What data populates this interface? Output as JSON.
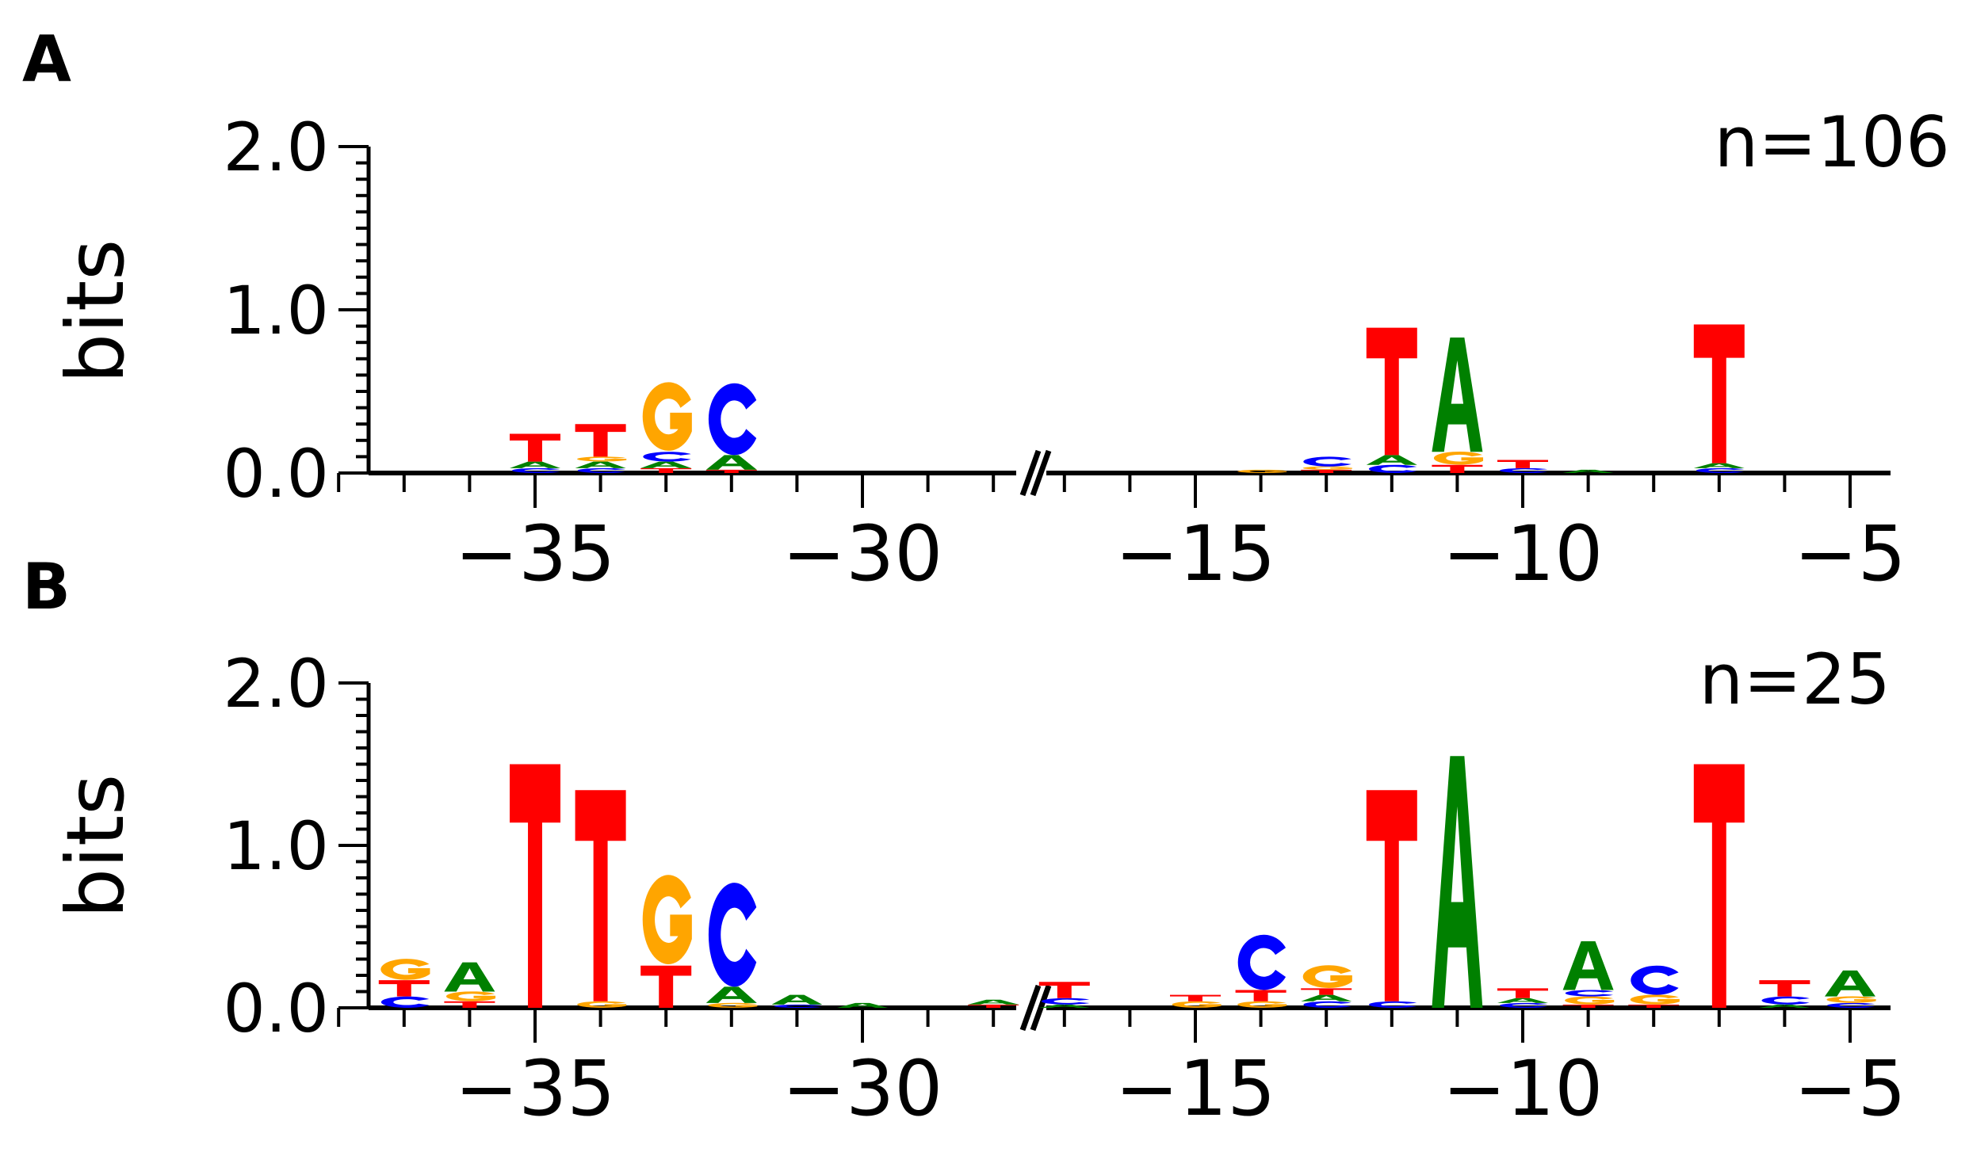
{
  "chart_data": [
    {
      "type": "sequence-logo",
      "panel_label": "A",
      "annotation": "n=106",
      "ylabel": "bits",
      "ylim": [
        0,
        2
      ],
      "yticks": [
        "0.0",
        "1.0",
        "2.0"
      ],
      "xticks": [
        "−35",
        "−30",
        "−15",
        "−10",
        "−5"
      ],
      "axis_break": true,
      "colors": {
        "A": "#008000",
        "C": "#0000ff",
        "G": "#ffa500",
        "T": "#ff0000"
      },
      "positions": [
        {
          "pos": -35,
          "letters": [
            {
              "base": "C",
              "bits": 0.03
            },
            {
              "base": "A",
              "bits": 0.04
            },
            {
              "base": "T",
              "bits": 0.17
            }
          ]
        },
        {
          "pos": -34,
          "letters": [
            {
              "base": "C",
              "bits": 0.03
            },
            {
              "base": "A",
              "bits": 0.04
            },
            {
              "base": "G",
              "bits": 0.03
            },
            {
              "base": "T",
              "bits": 0.2
            }
          ]
        },
        {
          "pos": -33,
          "letters": [
            {
              "base": "T",
              "bits": 0.03
            },
            {
              "base": "A",
              "bits": 0.04
            },
            {
              "base": "C",
              "bits": 0.06
            },
            {
              "base": "G",
              "bits": 0.42
            }
          ]
        },
        {
          "pos": -32,
          "letters": [
            {
              "base": "T",
              "bits": 0.02
            },
            {
              "base": "A",
              "bits": 0.09
            },
            {
              "base": "C",
              "bits": 0.44
            }
          ]
        },
        {
          "pos": -14,
          "letters": [
            {
              "base": "G",
              "bits": 0.02
            }
          ]
        },
        {
          "pos": -13,
          "letters": [
            {
              "base": "T",
              "bits": 0.02
            },
            {
              "base": "G",
              "bits": 0.02
            },
            {
              "base": "C",
              "bits": 0.06
            }
          ]
        },
        {
          "pos": -12,
          "letters": [
            {
              "base": "C",
              "bits": 0.05
            },
            {
              "base": "A",
              "bits": 0.06
            },
            {
              "base": "T",
              "bits": 0.78
            }
          ]
        },
        {
          "pos": -11,
          "letters": [
            {
              "base": "T",
              "bits": 0.05
            },
            {
              "base": "G",
              "bits": 0.08
            },
            {
              "base": "A",
              "bits": 0.7
            }
          ]
        },
        {
          "pos": -10,
          "letters": [
            {
              "base": "C",
              "bits": 0.03
            },
            {
              "base": "T",
              "bits": 0.05
            }
          ]
        },
        {
          "pos": -9,
          "letters": [
            {
              "base": "A",
              "bits": 0.02
            }
          ]
        },
        {
          "pos": -7,
          "letters": [
            {
              "base": "C",
              "bits": 0.03
            },
            {
              "base": "A",
              "bits": 0.03
            },
            {
              "base": "T",
              "bits": 0.85
            }
          ]
        }
      ]
    },
    {
      "type": "sequence-logo",
      "panel_label": "B",
      "annotation": "n=25",
      "ylabel": "bits",
      "ylim": [
        0,
        2
      ],
      "yticks": [
        "0.0",
        "1.0",
        "2.0"
      ],
      "xticks": [
        "−35",
        "−30",
        "−15",
        "−10",
        "−5"
      ],
      "axis_break": true,
      "colors": {
        "A": "#008000",
        "C": "#0000ff",
        "G": "#ffa500",
        "T": "#ff0000"
      },
      "positions": [
        {
          "pos": -37,
          "letters": [
            {
              "base": "C",
              "bits": 0.07
            },
            {
              "base": "T",
              "bits": 0.1
            },
            {
              "base": "G",
              "bits": 0.13
            }
          ]
        },
        {
          "pos": -36,
          "letters": [
            {
              "base": "T",
              "bits": 0.04
            },
            {
              "base": "G",
              "bits": 0.06
            },
            {
              "base": "A",
              "bits": 0.18
            }
          ]
        },
        {
          "pos": -35,
          "letters": [
            {
              "base": "T",
              "bits": 1.5
            }
          ]
        },
        {
          "pos": -34,
          "letters": [
            {
              "base": "G",
              "bits": 0.04
            },
            {
              "base": "T",
              "bits": 1.3
            }
          ]
        },
        {
          "pos": -33,
          "letters": [
            {
              "base": "T",
              "bits": 0.26
            },
            {
              "base": "G",
              "bits": 0.55
            }
          ]
        },
        {
          "pos": -32,
          "letters": [
            {
              "base": "G",
              "bits": 0.03
            },
            {
              "base": "A",
              "bits": 0.1
            },
            {
              "base": "C",
              "bits": 0.64
            }
          ]
        },
        {
          "pos": -31,
          "letters": [
            {
              "base": "C",
              "bits": 0.02
            },
            {
              "base": "A",
              "bits": 0.06
            }
          ]
        },
        {
          "pos": -30,
          "letters": [
            {
              "base": "A",
              "bits": 0.03
            }
          ]
        },
        {
          "pos": -28,
          "letters": [
            {
              "base": "T",
              "bits": 0.02
            },
            {
              "base": "A",
              "bits": 0.03
            }
          ]
        },
        {
          "pos": -17,
          "letters": [
            {
              "base": "A",
              "bits": 0.02
            },
            {
              "base": "C",
              "bits": 0.04
            },
            {
              "base": "T",
              "bits": 0.1
            }
          ]
        },
        {
          "pos": -15,
          "letters": [
            {
              "base": "G",
              "bits": 0.04
            },
            {
              "base": "T",
              "bits": 0.04
            }
          ]
        },
        {
          "pos": -14,
          "letters": [
            {
              "base": "G",
              "bits": 0.04
            },
            {
              "base": "T",
              "bits": 0.07
            },
            {
              "base": "C",
              "bits": 0.34
            }
          ]
        },
        {
          "pos": -13,
          "letters": [
            {
              "base": "C",
              "bits": 0.04
            },
            {
              "base": "A",
              "bits": 0.04
            },
            {
              "base": "T",
              "bits": 0.04
            },
            {
              "base": "G",
              "bits": 0.14
            }
          ]
        },
        {
          "pos": -12,
          "letters": [
            {
              "base": "C",
              "bits": 0.04
            },
            {
              "base": "T",
              "bits": 1.3
            }
          ]
        },
        {
          "pos": -11,
          "letters": [
            {
              "base": "A",
              "bits": 1.55
            }
          ]
        },
        {
          "pos": -10,
          "letters": [
            {
              "base": "C",
              "bits": 0.03
            },
            {
              "base": "A",
              "bits": 0.03
            },
            {
              "base": "T",
              "bits": 0.06
            }
          ]
        },
        {
          "pos": -9,
          "letters": [
            {
              "base": "T",
              "bits": 0.02
            },
            {
              "base": "G",
              "bits": 0.05
            },
            {
              "base": "C",
              "bits": 0.04
            },
            {
              "base": "A",
              "bits": 0.3
            }
          ]
        },
        {
          "pos": -8,
          "letters": [
            {
              "base": "T",
              "bits": 0.02
            },
            {
              "base": "G",
              "bits": 0.06
            },
            {
              "base": "C",
              "bits": 0.18
            }
          ]
        },
        {
          "pos": -7,
          "letters": [
            {
              "base": "T",
              "bits": 1.5
            }
          ]
        },
        {
          "pos": -6,
          "letters": [
            {
              "base": "A",
              "bits": 0.02
            },
            {
              "base": "C",
              "bits": 0.05
            },
            {
              "base": "T",
              "bits": 0.1
            }
          ]
        },
        {
          "pos": -5,
          "letters": [
            {
              "base": "C",
              "bits": 0.03
            },
            {
              "base": "G",
              "bits": 0.04
            },
            {
              "base": "A",
              "bits": 0.16
            }
          ]
        }
      ]
    }
  ]
}
